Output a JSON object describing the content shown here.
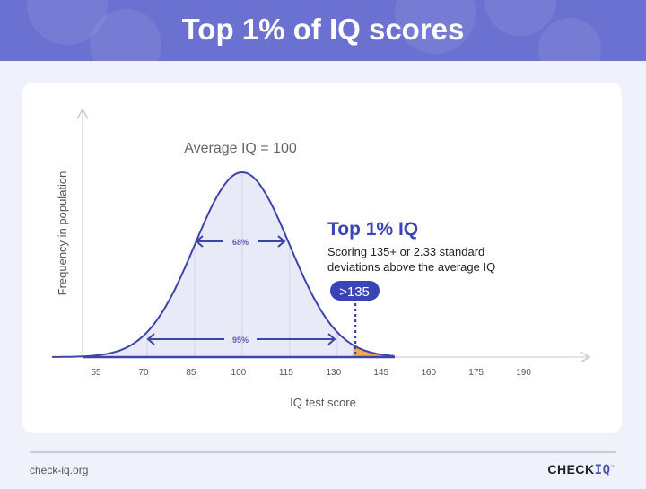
{
  "header": {
    "title": "Top 1% of IQ scores"
  },
  "chart_data": {
    "type": "area",
    "title": "",
    "xlabel": "IQ test score",
    "ylabel": "Frequency in population",
    "x_ticks": [
      55,
      70,
      85,
      100,
      115,
      130,
      145,
      160,
      175,
      190
    ],
    "distribution": {
      "mean": 100,
      "sd": 15
    },
    "annotations": {
      "average": "Average IQ = 100",
      "band_68": "68%",
      "band_68_range": [
        85,
        115
      ],
      "band_95": "95%",
      "band_95_range": [
        70,
        130
      ],
      "top_title": "Top 1% IQ",
      "top_desc_line1": "Scoring 135+ or 2.33 standard",
      "top_desc_line2": "deviations above the average IQ",
      "threshold_label": ">135",
      "threshold": 135
    },
    "colors": {
      "curve": "#3d46a8",
      "fill": "#e8eaf8",
      "tail": "#f5a94a",
      "accent": "#3a44b8"
    },
    "grid": false
  },
  "footer": {
    "site": "check-iq.org",
    "logo_a": "CHECK",
    "logo_b": "IQ",
    "logo_tm": "™"
  }
}
